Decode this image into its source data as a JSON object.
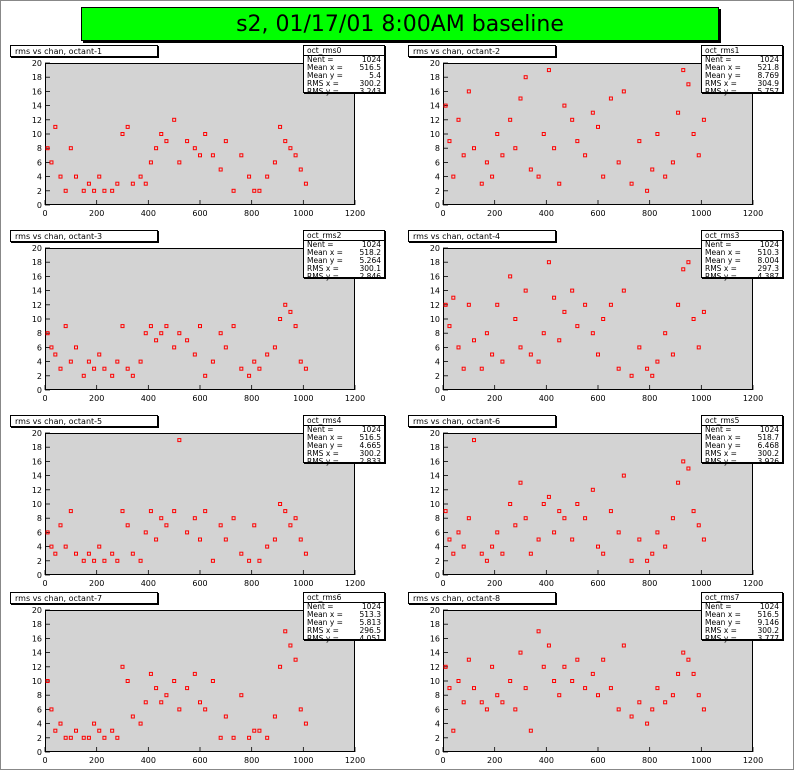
{
  "title": "s2, 01/17/01 8:00AM baseline",
  "colors": {
    "title_bg": "#00ff00",
    "frame_bg": "#d3d3d3",
    "marker": "#ff0000"
  },
  "chart_data": [
    {
      "type": "scatter",
      "title": "rms vs chan, octant-1",
      "xlim": [
        0,
        1200
      ],
      "ylim": [
        0,
        20
      ],
      "xticks": [
        0,
        200,
        400,
        600,
        800,
        1000,
        1200
      ],
      "yticks": [
        0,
        2,
        4,
        6,
        8,
        10,
        12,
        14,
        16,
        18,
        20
      ],
      "x": [
        10,
        25,
        40,
        60,
        80,
        100,
        120,
        150,
        170,
        190,
        210,
        230,
        260,
        280,
        300,
        320,
        340,
        370,
        390,
        410,
        430,
        450,
        470,
        500,
        520,
        550,
        580,
        600,
        620,
        650,
        680,
        700,
        730,
        760,
        790,
        810,
        830,
        860,
        890,
        910,
        930,
        950,
        970,
        990,
        1010
      ],
      "y": [
        8,
        6,
        11,
        4,
        2,
        8,
        4,
        2,
        3,
        2,
        4,
        2,
        2,
        3,
        10,
        11,
        3,
        4,
        3,
        6,
        8,
        10,
        9,
        12,
        6,
        9,
        8,
        7,
        10,
        7,
        5,
        9,
        2,
        7,
        4,
        2,
        2,
        4,
        6,
        11,
        9,
        8,
        7,
        5,
        3
      ],
      "stats": {
        "name": "oct_rms0",
        "entries": "1024",
        "mean_x": "516.5",
        "mean_y": "5.4",
        "rms_x": "300.2",
        "rms_y": "3.243"
      }
    },
    {
      "type": "scatter",
      "title": "rms vs chan, octant-2",
      "xlim": [
        0,
        1200
      ],
      "ylim": [
        0,
        20
      ],
      "xticks": [
        0,
        200,
        400,
        600,
        800,
        1000,
        1200
      ],
      "yticks": [
        0,
        2,
        4,
        6,
        8,
        10,
        12,
        14,
        16,
        18,
        20
      ],
      "x": [
        10,
        25,
        40,
        60,
        80,
        100,
        120,
        150,
        170,
        190,
        210,
        230,
        260,
        280,
        300,
        320,
        340,
        370,
        390,
        410,
        430,
        450,
        470,
        500,
        520,
        550,
        580,
        600,
        620,
        650,
        680,
        700,
        730,
        760,
        790,
        810,
        830,
        860,
        890,
        910,
        930,
        950,
        970,
        990,
        1010
      ],
      "y": [
        14,
        9,
        4,
        12,
        7,
        16,
        8,
        3,
        6,
        4,
        10,
        7,
        12,
        8,
        15,
        18,
        5,
        4,
        10,
        19,
        8,
        3,
        14,
        12,
        9,
        7,
        13,
        11,
        4,
        15,
        6,
        16,
        3,
        9,
        2,
        5,
        10,
        4,
        6,
        13,
        19,
        17,
        10,
        7,
        12
      ],
      "stats": {
        "name": "oct_rms1",
        "entries": "1024",
        "mean_x": "521.8",
        "mean_y": "8.769",
        "rms_x": "304.9",
        "rms_y": "5.757"
      }
    },
    {
      "type": "scatter",
      "title": "rms vs chan, octant-3",
      "xlim": [
        0,
        1200
      ],
      "ylim": [
        0,
        20
      ],
      "xticks": [
        0,
        200,
        400,
        600,
        800,
        1000,
        1200
      ],
      "yticks": [
        0,
        2,
        4,
        6,
        8,
        10,
        12,
        14,
        16,
        18,
        20
      ],
      "x": [
        10,
        25,
        40,
        60,
        80,
        100,
        120,
        150,
        170,
        190,
        210,
        230,
        260,
        280,
        300,
        320,
        340,
        370,
        390,
        410,
        430,
        450,
        470,
        500,
        520,
        550,
        580,
        600,
        620,
        650,
        680,
        700,
        730,
        760,
        790,
        810,
        830,
        860,
        890,
        910,
        930,
        950,
        970,
        990,
        1010
      ],
      "y": [
        8,
        6,
        5,
        3,
        9,
        4,
        6,
        2,
        4,
        3,
        5,
        3,
        2,
        4,
        9,
        3,
        2,
        4,
        8,
        9,
        7,
        8,
        9,
        6,
        8,
        7,
        5,
        9,
        2,
        4,
        8,
        6,
        9,
        3,
        2,
        4,
        3,
        5,
        6,
        10,
        12,
        11,
        9,
        4,
        3
      ],
      "stats": {
        "name": "oct_rms2",
        "entries": "1024",
        "mean_x": "518.2",
        "mean_y": "5.264",
        "rms_x": "300.1",
        "rms_y": "2.846"
      }
    },
    {
      "type": "scatter",
      "title": "rms vs chan, octant-4",
      "xlim": [
        0,
        1200
      ],
      "ylim": [
        0,
        20
      ],
      "xticks": [
        0,
        200,
        400,
        600,
        800,
        1000,
        1200
      ],
      "yticks": [
        0,
        2,
        4,
        6,
        8,
        10,
        12,
        14,
        16,
        18,
        20
      ],
      "x": [
        10,
        25,
        40,
        60,
        80,
        100,
        120,
        150,
        170,
        190,
        210,
        230,
        260,
        280,
        300,
        320,
        340,
        370,
        390,
        410,
        430,
        450,
        470,
        500,
        520,
        550,
        580,
        600,
        620,
        650,
        680,
        700,
        730,
        760,
        790,
        810,
        830,
        860,
        890,
        910,
        930,
        950,
        970,
        990,
        1010
      ],
      "y": [
        12,
        9,
        13,
        6,
        3,
        12,
        7,
        3,
        8,
        5,
        12,
        4,
        16,
        10,
        6,
        14,
        5,
        4,
        8,
        18,
        13,
        7,
        11,
        14,
        9,
        12,
        8,
        5,
        10,
        12,
        3,
        14,
        2,
        6,
        3,
        2,
        4,
        8,
        5,
        12,
        17,
        18,
        10,
        6,
        11
      ],
      "stats": {
        "name": "oct_rms3",
        "entries": "1024",
        "mean_x": "510.3",
        "mean_y": "8.004",
        "rms_x": "297.3",
        "rms_y": "4.387"
      }
    },
    {
      "type": "scatter",
      "title": "rms vs chan, octant-5",
      "xlim": [
        0,
        1200
      ],
      "ylim": [
        0,
        20
      ],
      "xticks": [
        0,
        200,
        400,
        600,
        800,
        1000,
        1200
      ],
      "yticks": [
        0,
        2,
        4,
        6,
        8,
        10,
        12,
        14,
        16,
        18,
        20
      ],
      "x": [
        10,
        25,
        40,
        60,
        80,
        100,
        120,
        150,
        170,
        190,
        210,
        230,
        260,
        280,
        300,
        320,
        340,
        370,
        390,
        410,
        430,
        450,
        470,
        500,
        520,
        550,
        580,
        600,
        620,
        650,
        680,
        700,
        730,
        760,
        790,
        810,
        830,
        860,
        890,
        910,
        930,
        950,
        970,
        990,
        1010
      ],
      "y": [
        6,
        4,
        3,
        7,
        4,
        9,
        3,
        2,
        3,
        2,
        4,
        2,
        3,
        2,
        9,
        7,
        3,
        2,
        6,
        9,
        5,
        8,
        7,
        9,
        19,
        6,
        8,
        5,
        9,
        2,
        7,
        5,
        8,
        3,
        2,
        7,
        2,
        4,
        5,
        10,
        9,
        7,
        8,
        5,
        3
      ],
      "stats": {
        "name": "oct_rms4",
        "entries": "1024",
        "mean_x": "516.5",
        "mean_y": "4.665",
        "rms_x": "300.2",
        "rms_y": "2.833"
      }
    },
    {
      "type": "scatter",
      "title": "rms vs chan, octant-6",
      "xlim": [
        0,
        1200
      ],
      "ylim": [
        0,
        20
      ],
      "xticks": [
        0,
        200,
        400,
        600,
        800,
        1000,
        1200
      ],
      "yticks": [
        0,
        2,
        4,
        6,
        8,
        10,
        12,
        14,
        16,
        18,
        20
      ],
      "x": [
        10,
        25,
        40,
        60,
        80,
        100,
        120,
        150,
        170,
        190,
        210,
        230,
        260,
        280,
        300,
        320,
        340,
        370,
        390,
        410,
        430,
        450,
        470,
        500,
        520,
        550,
        580,
        600,
        620,
        650,
        680,
        700,
        730,
        760,
        790,
        810,
        830,
        860,
        890,
        910,
        930,
        950,
        970,
        990,
        1010
      ],
      "y": [
        9,
        5,
        3,
        6,
        4,
        8,
        19,
        3,
        2,
        4,
        6,
        3,
        10,
        7,
        13,
        8,
        3,
        5,
        10,
        11,
        6,
        9,
        8,
        5,
        10,
        8,
        12,
        4,
        3,
        9,
        6,
        14,
        2,
        5,
        2,
        3,
        6,
        4,
        8,
        13,
        16,
        15,
        9,
        7,
        5
      ],
      "stats": {
        "name": "oct_rms5",
        "entries": "1024",
        "mean_x": "518.7",
        "mean_y": "6.468",
        "rms_x": "300.2",
        "rms_y": "3.926"
      }
    },
    {
      "type": "scatter",
      "title": "rms vs chan, octant-7",
      "xlim": [
        0,
        1200
      ],
      "ylim": [
        0,
        20
      ],
      "xticks": [
        0,
        200,
        400,
        600,
        800,
        1000,
        1200
      ],
      "yticks": [
        0,
        2,
        4,
        6,
        8,
        10,
        12,
        14,
        16,
        18,
        20
      ],
      "x": [
        10,
        25,
        40,
        60,
        80,
        100,
        120,
        150,
        170,
        190,
        210,
        230,
        260,
        280,
        300,
        320,
        340,
        370,
        390,
        410,
        430,
        450,
        470,
        500,
        520,
        550,
        580,
        600,
        620,
        650,
        680,
        700,
        730,
        760,
        790,
        810,
        830,
        860,
        890,
        910,
        930,
        950,
        970,
        990,
        1010
      ],
      "y": [
        10,
        6,
        3,
        4,
        2,
        2,
        3,
        2,
        2,
        4,
        3,
        2,
        3,
        2,
        12,
        10,
        5,
        4,
        7,
        11,
        9,
        7,
        8,
        10,
        6,
        9,
        11,
        7,
        6,
        10,
        2,
        5,
        2,
        8,
        2,
        3,
        3,
        2,
        5,
        12,
        17,
        15,
        13,
        6,
        4
      ],
      "stats": {
        "name": "oct_rms6",
        "entries": "1024",
        "mean_x": "513.3",
        "mean_y": "5.813",
        "rms_x": "296.5",
        "rms_y": "4.051"
      }
    },
    {
      "type": "scatter",
      "title": "rms vs chan, octant-8",
      "xlim": [
        0,
        1200
      ],
      "ylim": [
        0,
        20
      ],
      "xticks": [
        0,
        200,
        400,
        600,
        800,
        1000,
        1200
      ],
      "yticks": [
        0,
        2,
        4,
        6,
        8,
        10,
        12,
        14,
        16,
        18,
        20
      ],
      "x": [
        10,
        25,
        40,
        60,
        80,
        100,
        120,
        150,
        170,
        190,
        210,
        230,
        260,
        280,
        300,
        320,
        340,
        370,
        390,
        410,
        430,
        450,
        470,
        500,
        520,
        550,
        580,
        600,
        620,
        650,
        680,
        700,
        730,
        760,
        790,
        810,
        830,
        860,
        890,
        910,
        930,
        950,
        970,
        990,
        1010
      ],
      "y": [
        12,
        9,
        3,
        10,
        7,
        13,
        9,
        7,
        6,
        12,
        8,
        7,
        10,
        6,
        14,
        9,
        3,
        17,
        12,
        15,
        10,
        8,
        12,
        10,
        13,
        9,
        11,
        8,
        13,
        9,
        6,
        15,
        5,
        7,
        4,
        6,
        9,
        7,
        8,
        11,
        14,
        13,
        11,
        8,
        6
      ],
      "stats": {
        "name": "oct_rms7",
        "entries": "1024",
        "mean_x": "516.5",
        "mean_y": "9.146",
        "rms_x": "300.2",
        "rms_y": "3.777"
      }
    }
  ]
}
